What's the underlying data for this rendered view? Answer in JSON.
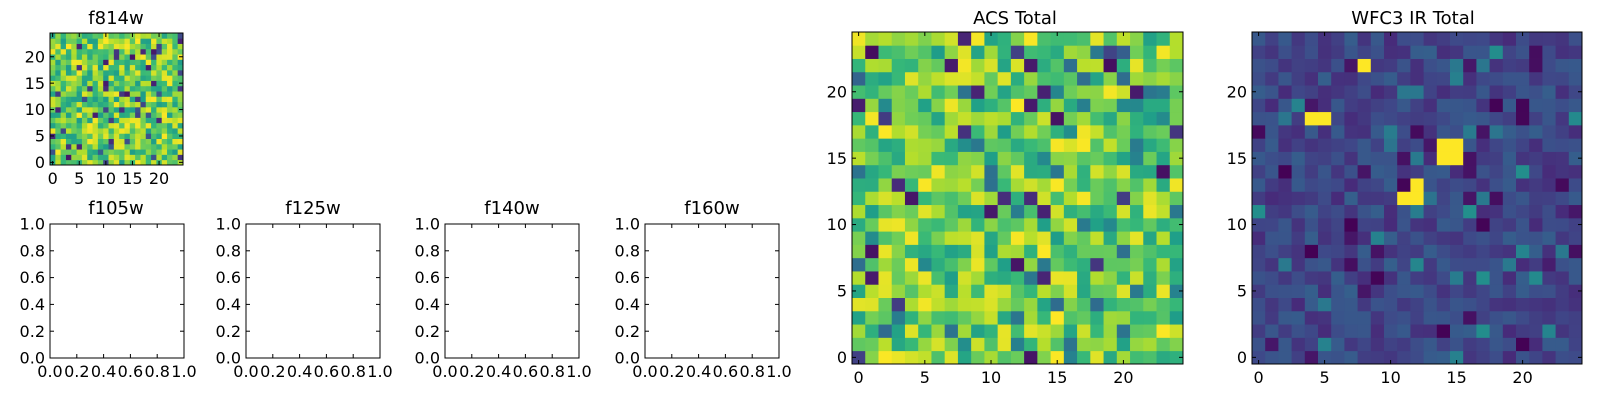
{
  "figure": {
    "background": "#ffffff",
    "colormap": "viridis"
  },
  "chart_data": [
    {
      "id": "f814w",
      "type": "heatmap",
      "title": "f814w",
      "xlim": [
        -0.5,
        24.5
      ],
      "ylim": [
        -0.5,
        24.5
      ],
      "xticks": [
        0,
        5,
        10,
        15,
        20
      ],
      "yticks": [
        0,
        5,
        10,
        15,
        20
      ],
      "grid": false,
      "zlim": [
        0,
        1
      ],
      "value_note": "25x25 pixel image of uniform noise; dominant values green-yellow with sparse dark outliers"
    },
    {
      "id": "f105w",
      "type": "empty",
      "title": "f105w",
      "xlim": [
        0,
        1
      ],
      "ylim": [
        0,
        1
      ],
      "xticks": [
        "0.0",
        "0.2",
        "0.4",
        "0.6",
        "0.8",
        "1.0"
      ],
      "yticks": [
        "0.0",
        "0.2",
        "0.4",
        "0.6",
        "0.8",
        "1.0"
      ]
    },
    {
      "id": "f125w",
      "type": "empty",
      "title": "f125w",
      "xlim": [
        0,
        1
      ],
      "ylim": [
        0,
        1
      ],
      "xticks": [
        "0.0",
        "0.2",
        "0.4",
        "0.6",
        "0.8",
        "1.0"
      ],
      "yticks": [
        "0.0",
        "0.2",
        "0.4",
        "0.6",
        "0.8",
        "1.0"
      ]
    },
    {
      "id": "f140w",
      "type": "empty",
      "title": "f140w",
      "xlim": [
        0,
        1
      ],
      "ylim": [
        0,
        1
      ],
      "xticks": [
        "0.0",
        "0.2",
        "0.4",
        "0.6",
        "0.8",
        "1.0"
      ],
      "yticks": [
        "0.0",
        "0.2",
        "0.4",
        "0.6",
        "0.8",
        "1.0"
      ]
    },
    {
      "id": "f160w",
      "type": "empty",
      "title": "f160w",
      "xlim": [
        0,
        1
      ],
      "ylim": [
        0,
        1
      ],
      "xticks": [
        "0.0",
        "0.2",
        "0.4",
        "0.6",
        "0.8",
        "1.0"
      ],
      "yticks": [
        "0.0",
        "0.2",
        "0.4",
        "0.6",
        "0.8",
        "1.0"
      ]
    },
    {
      "id": "acs_total",
      "type": "heatmap",
      "title": "ACS Total",
      "xlim": [
        -0.5,
        24.5
      ],
      "ylim": [
        -0.5,
        24.5
      ],
      "xticks": [
        0,
        5,
        10,
        15,
        20
      ],
      "yticks": [
        0,
        5,
        10,
        15,
        20
      ],
      "grid": false,
      "zlim": [
        0,
        1
      ],
      "value_note": "25x25 pixel image; mostly green-yellow values with scattered dark pixels"
    },
    {
      "id": "wfc3_total",
      "type": "heatmap",
      "title": "WFC3 IR Total",
      "xlim": [
        -0.5,
        24.5
      ],
      "ylim": [
        -0.5,
        24.5
      ],
      "xticks": [
        0,
        5,
        10,
        15,
        20
      ],
      "yticks": [
        0,
        5,
        10,
        15,
        20
      ],
      "grid": false,
      "zlim": [
        0,
        1
      ],
      "value_note": "25x25 pixel image; mostly dark blue background with bright yellow pixels at (8,22), (4-5,18), (14-15,15-16), (11-12,12-13)",
      "bright_pixels": [
        [
          8,
          22
        ],
        [
          4,
          18
        ],
        [
          5,
          18
        ],
        [
          14,
          15
        ],
        [
          15,
          15
        ],
        [
          15,
          16
        ],
        [
          14,
          16
        ],
        [
          12,
          13
        ],
        [
          11,
          12
        ],
        [
          12,
          12
        ]
      ]
    }
  ]
}
